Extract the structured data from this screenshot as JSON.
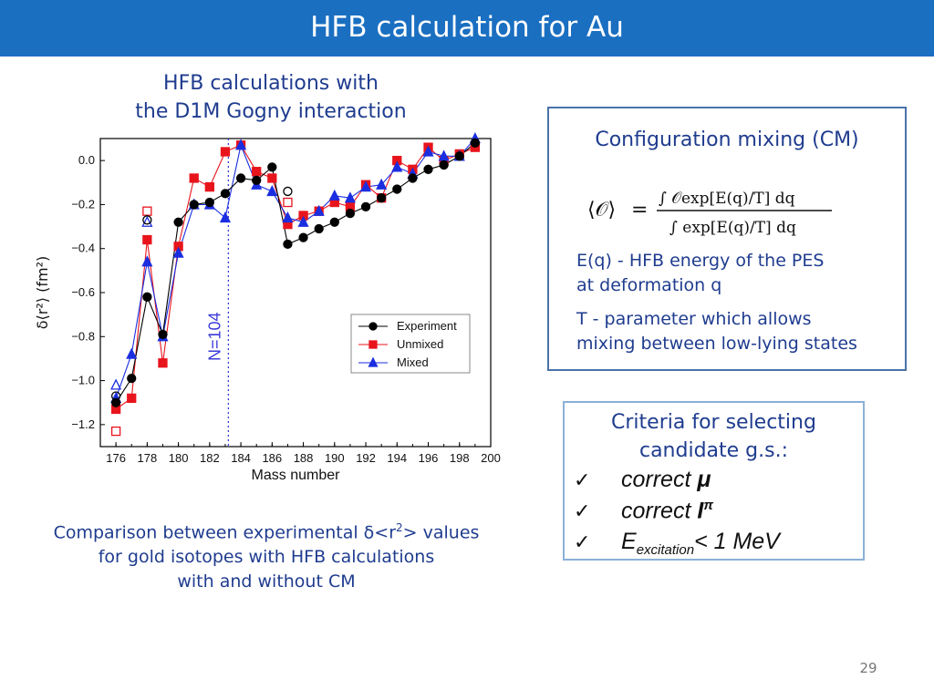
{
  "header": {
    "title": "HFB calculation for Au"
  },
  "subtitle": {
    "line1": "HFB calculations with",
    "line2": "the D1M Gogny interaction"
  },
  "cm_box": {
    "title": "Configuration mixing (CM)",
    "eq_line1": "E(q) - HFB energy of the PES",
    "eq_line2": "at deformation q",
    "t_line1": "T - parameter which allows",
    "t_line2": "mixing between low-lying states"
  },
  "criteria": {
    "title_line1": "Criteria for selecting",
    "title_line2": "candidate g.s.:",
    "item1_text": "correct ",
    "item1_symbol": "μ",
    "item2_text": "correct ",
    "item2_symbol": "I",
    "item2_sup": "π",
    "item3_base": "E",
    "item3_sub": "excitation",
    "item3_rest": "< 1 MeV",
    "check": "✓"
  },
  "caption": {
    "line1_pre": "Comparison between experimental δ<r",
    "line1_sup": "2",
    "line1_post": "> values",
    "line2": "for gold isotopes with HFB calculations",
    "line3": "with and without CM"
  },
  "page_number": "29",
  "chart_data": {
    "type": "line",
    "xlabel": "Mass number",
    "ylabel": "δ⟨r²⟩ (fm²)",
    "xlim": [
      175,
      200
    ],
    "ylim": [
      -1.3,
      0.1
    ],
    "xticks": [
      176,
      178,
      180,
      182,
      184,
      186,
      188,
      190,
      192,
      194,
      196,
      198,
      200
    ],
    "yticks": [
      0.0,
      -0.2,
      -0.4,
      -0.6,
      -0.8,
      -1.0,
      -1.2
    ],
    "ytick_labels": [
      "0.0",
      "−0.2",
      "−0.4",
      "−0.6",
      "−0.8",
      "−1.0",
      "−1.2"
    ],
    "vline": {
      "x": 183.2,
      "label": "N=104"
    },
    "legend": "inside right",
    "colors": {
      "experiment": "#000000",
      "unmixed": "#e8141c",
      "mixed": "#1a2ee0",
      "vline": "#3a3ad8"
    },
    "series": [
      {
        "name": "Experiment",
        "marker": "circle",
        "x": [
          176,
          177,
          178,
          179,
          180,
          181,
          182,
          183,
          184,
          185,
          186,
          187,
          188,
          189,
          190,
          191,
          192,
          193,
          194,
          195,
          196,
          197,
          198,
          199
        ],
        "values": [
          -1.1,
          -0.99,
          -0.62,
          -0.79,
          -0.28,
          -0.2,
          -0.19,
          -0.15,
          -0.08,
          -0.09,
          -0.03,
          -0.38,
          -0.35,
          -0.31,
          -0.28,
          -0.24,
          -0.21,
          -0.17,
          -0.13,
          -0.08,
          -0.04,
          -0.02,
          0.02,
          0.08
        ]
      },
      {
        "name": "Unmixed",
        "marker": "square",
        "x": [
          176,
          177,
          178,
          179,
          180,
          181,
          182,
          183,
          184,
          185,
          186,
          187,
          188,
          189,
          190,
          191,
          192,
          193,
          194,
          195,
          196,
          197,
          198,
          199
        ],
        "values": [
          -1.13,
          -1.08,
          -0.36,
          -0.92,
          -0.39,
          -0.08,
          -0.12,
          0.04,
          0.07,
          -0.05,
          -0.08,
          -0.29,
          -0.25,
          -0.23,
          -0.19,
          -0.21,
          -0.11,
          -0.17,
          0.0,
          -0.04,
          0.06,
          0.0,
          0.03,
          0.06
        ]
      },
      {
        "name": "Mixed",
        "marker": "triangle",
        "x": [
          176,
          177,
          178,
          179,
          180,
          181,
          182,
          183,
          184,
          185,
          186,
          187,
          188,
          189,
          190,
          191,
          192,
          193,
          194,
          195,
          196,
          197,
          198,
          199
        ],
        "values": [
          -1.08,
          -0.88,
          -0.46,
          -0.8,
          -0.42,
          -0.2,
          -0.2,
          -0.26,
          0.07,
          -0.11,
          -0.14,
          -0.26,
          -0.28,
          -0.23,
          -0.16,
          -0.17,
          -0.12,
          -0.11,
          -0.03,
          -0.06,
          0.04,
          0.02,
          0.02,
          0.1
        ]
      }
    ],
    "open_markers": [
      {
        "marker": "square",
        "x": 176,
        "y": -1.23
      },
      {
        "marker": "square",
        "x": 178,
        "y": -0.23
      },
      {
        "marker": "triangle",
        "x": 176,
        "y": -1.02
      },
      {
        "marker": "triangle",
        "x": 178,
        "y": -0.28
      },
      {
        "marker": "circle",
        "x": 176,
        "y": -1.07
      },
      {
        "marker": "circle",
        "x": 178,
        "y": -0.27
      },
      {
        "marker": "circle",
        "x": 187,
        "y": -0.14
      },
      {
        "marker": "square",
        "x": 187,
        "y": -0.19
      }
    ]
  }
}
